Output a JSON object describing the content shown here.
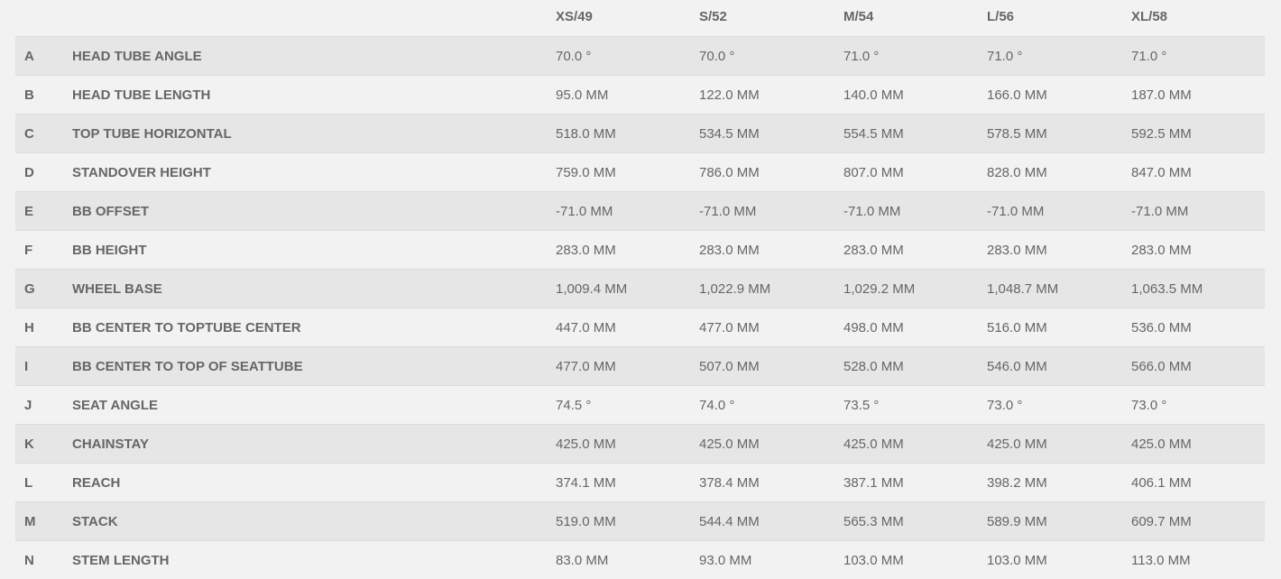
{
  "sizes": [
    "XS/49",
    "S/52",
    "M/54",
    "L/56",
    "XL/58"
  ],
  "rows": [
    {
      "letter": "A",
      "label": "HEAD TUBE ANGLE",
      "values": [
        "70.0 °",
        "70.0 °",
        "71.0 °",
        "71.0 °",
        "71.0 °"
      ]
    },
    {
      "letter": "B",
      "label": "HEAD TUBE LENGTH",
      "values": [
        "95.0 MM",
        "122.0 MM",
        "140.0 MM",
        "166.0 MM",
        "187.0 MM"
      ]
    },
    {
      "letter": "C",
      "label": "TOP TUBE HORIZONTAL",
      "values": [
        "518.0 MM",
        "534.5 MM",
        "554.5 MM",
        "578.5 MM",
        "592.5 MM"
      ]
    },
    {
      "letter": "D",
      "label": "STANDOVER HEIGHT",
      "values": [
        "759.0 MM",
        "786.0 MM",
        "807.0 MM",
        "828.0 MM",
        "847.0 MM"
      ]
    },
    {
      "letter": "E",
      "label": "BB OFFSET",
      "values": [
        "-71.0 MM",
        "-71.0 MM",
        "-71.0 MM",
        "-71.0 MM",
        "-71.0 MM"
      ]
    },
    {
      "letter": "F",
      "label": "BB HEIGHT",
      "values": [
        "283.0 MM",
        "283.0 MM",
        "283.0 MM",
        "283.0 MM",
        "283.0 MM"
      ]
    },
    {
      "letter": "G",
      "label": "WHEEL BASE",
      "values": [
        "1,009.4 MM",
        "1,022.9 MM",
        "1,029.2 MM",
        "1,048.7 MM",
        "1,063.5 MM"
      ]
    },
    {
      "letter": "H",
      "label": "BB CENTER TO TOPTUBE CENTER",
      "values": [
        "447.0 MM",
        "477.0 MM",
        "498.0 MM",
        "516.0 MM",
        "536.0 MM"
      ]
    },
    {
      "letter": "I",
      "label": "BB CENTER TO TOP OF SEATTUBE",
      "values": [
        "477.0 MM",
        "507.0 MM",
        "528.0 MM",
        "546.0 MM",
        "566.0 MM"
      ]
    },
    {
      "letter": "J",
      "label": "SEAT ANGLE",
      "values": [
        "74.5 °",
        "74.0 °",
        "73.5 °",
        "73.0 °",
        "73.0 °"
      ]
    },
    {
      "letter": "K",
      "label": "CHAINSTAY",
      "values": [
        "425.0 MM",
        "425.0 MM",
        "425.0 MM",
        "425.0 MM",
        "425.0 MM"
      ]
    },
    {
      "letter": "L",
      "label": "REACH",
      "values": [
        "374.1 MM",
        "378.4 MM",
        "387.1 MM",
        "398.2 MM",
        "406.1 MM"
      ]
    },
    {
      "letter": "M",
      "label": "STACK",
      "values": [
        "519.0 MM",
        "544.4 MM",
        "565.3 MM",
        "589.9 MM",
        "609.7 MM"
      ]
    },
    {
      "letter": "N",
      "label": "STEM LENGTH",
      "values": [
        "83.0 MM",
        "93.0 MM",
        "103.0 MM",
        "103.0 MM",
        "113.0 MM"
      ]
    }
  ]
}
